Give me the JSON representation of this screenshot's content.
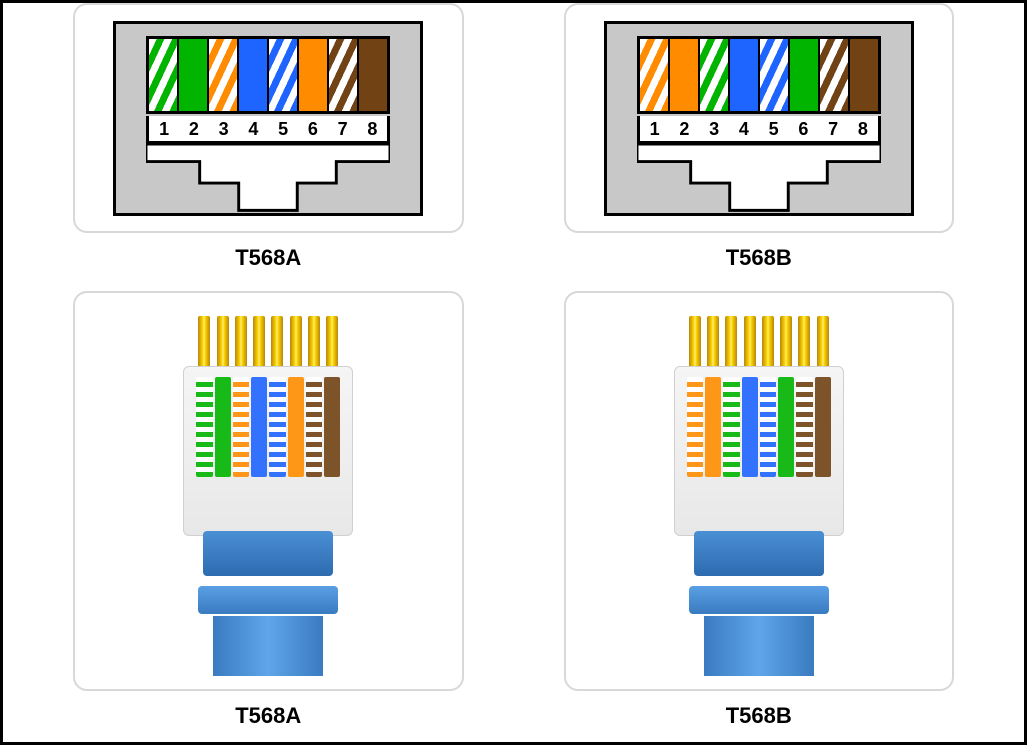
{
  "standards": {
    "left": {
      "label": "T568A",
      "pins": [
        {
          "n": "1",
          "color": "#00b400",
          "striped": true
        },
        {
          "n": "2",
          "color": "#00b400",
          "striped": false
        },
        {
          "n": "3",
          "color": "#ff8c00",
          "striped": true
        },
        {
          "n": "4",
          "color": "#1e64ff",
          "striped": false
        },
        {
          "n": "5",
          "color": "#1e64ff",
          "striped": true
        },
        {
          "n": "6",
          "color": "#ff8c00",
          "striped": false
        },
        {
          "n": "7",
          "color": "#704214",
          "striped": true
        },
        {
          "n": "8",
          "color": "#704214",
          "striped": false
        }
      ]
    },
    "right": {
      "label": "T568B",
      "pins": [
        {
          "n": "1",
          "color": "#ff8c00",
          "striped": true
        },
        {
          "n": "2",
          "color": "#ff8c00",
          "striped": false
        },
        {
          "n": "3",
          "color": "#00b400",
          "striped": true
        },
        {
          "n": "4",
          "color": "#1e64ff",
          "striped": false
        },
        {
          "n": "5",
          "color": "#1e64ff",
          "striped": true
        },
        {
          "n": "6",
          "color": "#00b400",
          "striped": false
        },
        {
          "n": "7",
          "color": "#704214",
          "striped": true
        },
        {
          "n": "8",
          "color": "#704214",
          "striped": false
        }
      ]
    }
  },
  "style": {
    "jack_bg": "#c8c8c8",
    "white": "#ffffff",
    "pin_gold": "#ffd700",
    "cable_blue": "#3a7bc0",
    "label_fontsize": 22
  }
}
